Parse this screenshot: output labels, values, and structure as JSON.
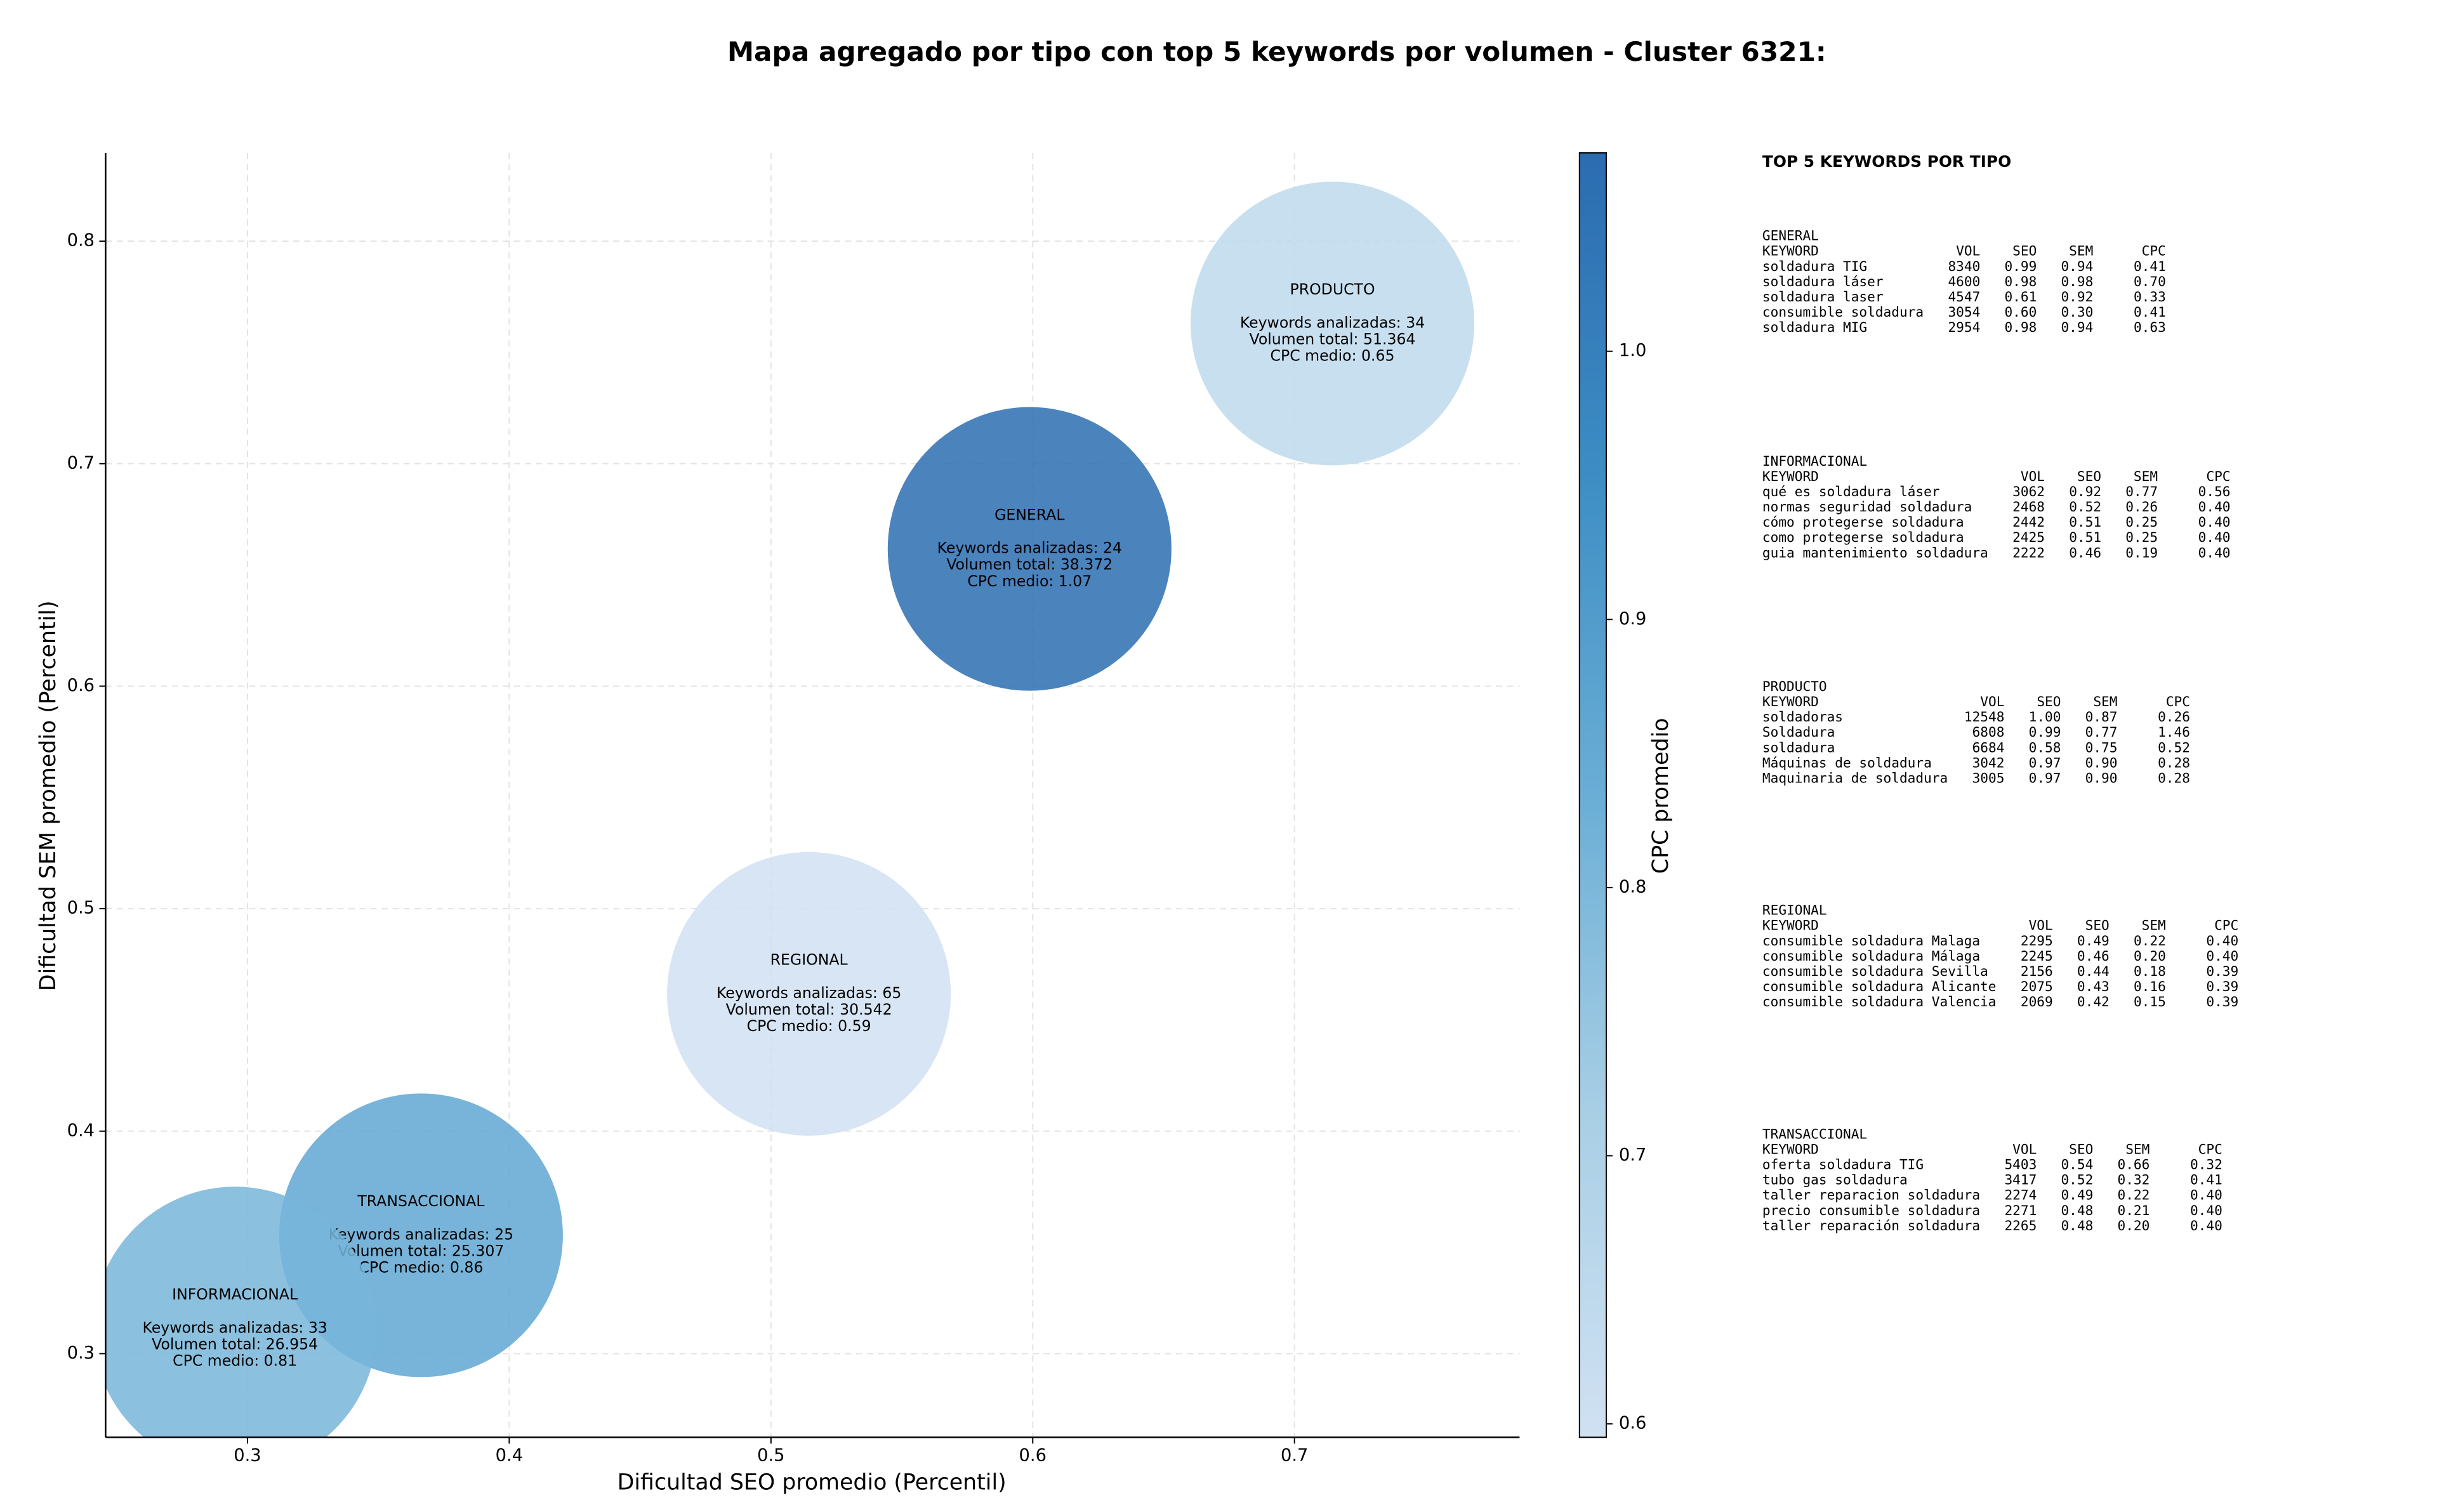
{
  "chart_data": {
    "type": "bubble",
    "title": "Mapa agregado por tipo con top 5 keywords por volumen - Cluster 6321:",
    "xlabel": "Dificultad SEO promedio (Percentil)",
    "ylabel": "Dificultad SEM promedio (Percentil)",
    "xlim": [
      0.2458,
      0.786
    ],
    "ylim": [
      0.2624,
      0.8397
    ],
    "xticks": [
      0.3,
      0.4,
      0.5,
      0.6,
      0.7
    ],
    "yticks": [
      0.3,
      0.4,
      0.5,
      0.6,
      0.7,
      0.8
    ],
    "grid": true,
    "colorbar": {
      "label": "CPC promedio",
      "lim": [
        0.595,
        1.074
      ],
      "ticks": [
        0.6,
        0.7,
        0.8,
        0.9,
        {
          "value": 1.0,
          "label": "1.0"
        }
      ],
      "colormap": [
        "#d0e1f2",
        "#a9cfe5",
        "#6aaed6",
        "#3d8dc4",
        "#2b6cb0"
      ]
    },
    "points": [
      {
        "name": "PRODUCTO",
        "x": 0.7145,
        "y": 0.763,
        "cpc": 0.65,
        "annotations": [
          "Keywords analizadas: 34",
          "Volumen total: 51.364",
          "CPC medio: 0.65"
        ]
      },
      {
        "name": "GENERAL",
        "x": 0.5988,
        "y": 0.6617,
        "cpc": 1.07,
        "annotations": [
          "Keywords analizadas: 24",
          "Volumen total: 38.372",
          "CPC medio: 1.07"
        ]
      },
      {
        "name": "REGIONAL",
        "x": 0.5145,
        "y": 0.4617,
        "cpc": 0.59,
        "annotations": [
          "Keywords analizadas: 65",
          "Volumen total: 30.542",
          "CPC medio: 0.59"
        ]
      },
      {
        "name": "TRANSACCIONAL",
        "x": 0.3663,
        "y": 0.3532,
        "cpc": 0.86,
        "annotations": [
          "Keywords analizadas: 25",
          "Volumen total: 25.307",
          "CPC medio: 0.86"
        ]
      },
      {
        "name": "INFORMACIONAL",
        "x": 0.2952,
        "y": 0.3113,
        "cpc": 0.81,
        "annotations": [
          "Keywords analizadas: 33",
          "Volumen total: 26.954",
          "CPC medio: 0.81"
        ]
      }
    ]
  },
  "panel": {
    "title": "TOP 5 KEYWORDS POR TIPO",
    "columns": [
      "KEYWORD",
      "VOL",
      "SEO",
      "SEM",
      "CPC"
    ],
    "sections": [
      {
        "name": "GENERAL",
        "rows": [
          [
            "soldadura TIG",
            "8340",
            "0.99",
            "0.94",
            "0.41"
          ],
          [
            "soldadura láser",
            "4600",
            "0.98",
            "0.98",
            "0.70"
          ],
          [
            "soldadura laser",
            "4547",
            "0.61",
            "0.92",
            "0.33"
          ],
          [
            "consumible soldadura",
            "3054",
            "0.60",
            "0.30",
            "0.41"
          ],
          [
            "soldadura MIG",
            "2954",
            "0.98",
            "0.94",
            "0.63"
          ]
        ]
      },
      {
        "name": "INFORMACIONAL",
        "rows": [
          [
            "qué es soldadura láser",
            "3062",
            "0.92",
            "0.77",
            "0.56"
          ],
          [
            "normas seguridad soldadura",
            "2468",
            "0.52",
            "0.26",
            "0.40"
          ],
          [
            "cómo protegerse soldadura",
            "2442",
            "0.51",
            "0.25",
            "0.40"
          ],
          [
            "como protegerse soldadura",
            "2425",
            "0.51",
            "0.25",
            "0.40"
          ],
          [
            "guia mantenimiento soldadura",
            "2222",
            "0.46",
            "0.19",
            "0.40"
          ]
        ]
      },
      {
        "name": "PRODUCTO",
        "rows": [
          [
            "soldadoras",
            "12548",
            "1.00",
            "0.87",
            "0.26"
          ],
          [
            "Soldadura",
            "6808",
            "0.99",
            "0.77",
            "1.46"
          ],
          [
            "soldadura",
            "6684",
            "0.58",
            "0.75",
            "0.52"
          ],
          [
            "Máquinas de soldadura",
            "3042",
            "0.97",
            "0.90",
            "0.28"
          ],
          [
            "Maquinaria de soldadura",
            "3005",
            "0.97",
            "0.90",
            "0.28"
          ]
        ]
      },
      {
        "name": "REGIONAL",
        "rows": [
          [
            "consumible soldadura Malaga",
            "2295",
            "0.49",
            "0.22",
            "0.40"
          ],
          [
            "consumible soldadura Málaga",
            "2245",
            "0.46",
            "0.20",
            "0.40"
          ],
          [
            "consumible soldadura Sevilla",
            "2156",
            "0.44",
            "0.18",
            "0.39"
          ],
          [
            "consumible soldadura Alicante",
            "2075",
            "0.43",
            "0.16",
            "0.39"
          ],
          [
            "consumible soldadura Valencia",
            "2069",
            "0.42",
            "0.15",
            "0.39"
          ]
        ]
      },
      {
        "name": "TRANSACCIONAL",
        "rows": [
          [
            "oferta soldadura TIG",
            "5403",
            "0.54",
            "0.66",
            "0.32"
          ],
          [
            "tubo gas soldadura",
            "3417",
            "0.52",
            "0.32",
            "0.41"
          ],
          [
            "taller reparacion soldadura",
            "2274",
            "0.49",
            "0.22",
            "0.40"
          ],
          [
            "precio consumible soldadura",
            "2271",
            "0.48",
            "0.21",
            "0.40"
          ],
          [
            "taller reparación soldadura",
            "2265",
            "0.48",
            "0.20",
            "0.40"
          ]
        ]
      }
    ]
  }
}
